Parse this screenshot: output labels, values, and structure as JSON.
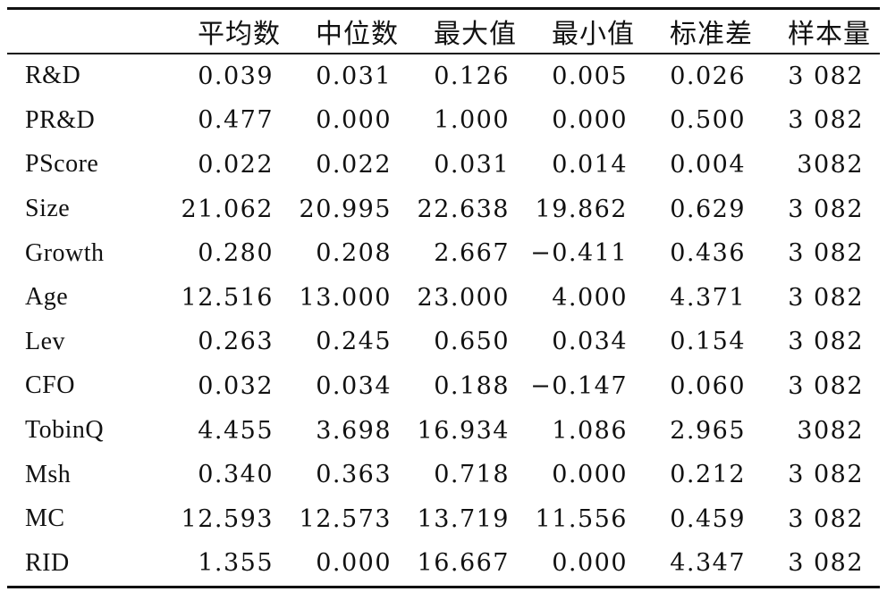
{
  "table": {
    "headers": [
      "",
      "平均数",
      "中位数",
      "最大值",
      "最小值",
      "标准差",
      "样本量"
    ],
    "rows": [
      [
        "R&D",
        "0.039",
        "0.031",
        "0.126",
        "0.005",
        "0.026",
        "3 082"
      ],
      [
        "PR&D",
        "0.477",
        "0.000",
        "1.000",
        "0.000",
        "0.500",
        "3 082"
      ],
      [
        "PScore",
        "0.022",
        "0.022",
        "0.031",
        "0.014",
        "0.004",
        "3082"
      ],
      [
        "Size",
        "21.062",
        "20.995",
        "22.638",
        "19.862",
        "0.629",
        "3 082"
      ],
      [
        "Growth",
        "0.280",
        "0.208",
        "2.667",
        "−0.411",
        "0.436",
        "3 082"
      ],
      [
        "Age",
        "12.516",
        "13.000",
        "23.000",
        "4.000",
        "4.371",
        "3 082"
      ],
      [
        "Lev",
        "0.263",
        "0.245",
        "0.650",
        "0.034",
        "0.154",
        "3 082"
      ],
      [
        "CFO",
        "0.032",
        "0.034",
        "0.188",
        "−0.147",
        "0.060",
        "3 082"
      ],
      [
        "TobinQ",
        "4.455",
        "3.698",
        "16.934",
        "1.086",
        "2.965",
        "3082"
      ],
      [
        "Msh",
        "0.340",
        "0.363",
        "0.718",
        "0.000",
        "0.212",
        "3 082"
      ],
      [
        "MC",
        "12.593",
        "12.573",
        "13.719",
        "11.556",
        "0.459",
        "3 082"
      ],
      [
        "RID",
        "1.355",
        "0.000",
        "16.667",
        "0.000",
        "4.347",
        "3 082"
      ]
    ]
  }
}
